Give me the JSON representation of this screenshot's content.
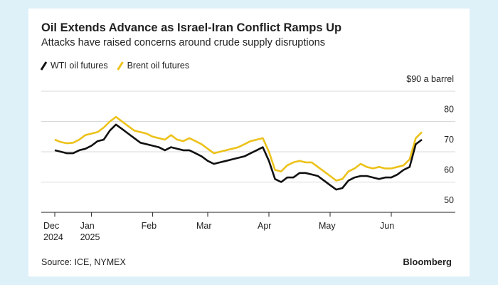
{
  "chart_data": {
    "type": "line",
    "title": "Oil Extends Advance as Israel-Iran Conflict Ramps Up",
    "subtitle": "Attacks have raised concerns around crude supply disruptions",
    "source": "Source: ICE, NYMEX",
    "brand": "Bloomberg",
    "legend": "top-left",
    "grid": true,
    "categories": [
      "Dec\n2024",
      null,
      null,
      null,
      null,
      null,
      "Jan\n2025",
      null,
      null,
      null,
      null,
      null,
      null,
      null,
      null,
      null,
      "Feb",
      null,
      null,
      null,
      null,
      null,
      null,
      null,
      null,
      "Mar",
      null,
      null,
      null,
      null,
      null,
      null,
      null,
      null,
      null,
      "Apr",
      null,
      null,
      null,
      null,
      null,
      null,
      null,
      null,
      null,
      "May",
      null,
      null,
      null,
      null,
      null,
      null,
      null,
      null,
      null,
      "Jun",
      null,
      null,
      null,
      null,
      null
    ],
    "ylim": [
      50,
      90
    ],
    "yticks": [
      50,
      60,
      70,
      80,
      {
        "value": 90,
        "label": "$90 a barrel"
      }
    ],
    "series": [
      {
        "name": "WTI oil futures",
        "color": "#111111",
        "values": [
          70.5,
          70,
          69.5,
          69.5,
          70.5,
          71,
          72,
          73.5,
          74,
          77,
          79,
          77.5,
          76,
          74.5,
          73,
          72.5,
          72,
          71.5,
          70.5,
          71.5,
          71,
          70.5,
          70.5,
          69.5,
          68.5,
          67,
          66,
          66.5,
          67,
          67.5,
          68,
          68.5,
          69.5,
          70.5,
          71.5,
          67,
          61,
          60,
          61.5,
          61.5,
          63,
          63,
          62.5,
          62,
          60.5,
          59,
          57.5,
          58,
          60.5,
          61.5,
          62,
          62,
          61.5,
          61,
          61.5,
          61.5,
          62.5,
          64,
          65,
          72.5,
          74
        ]
      },
      {
        "name": "Brent oil futures",
        "color": "#ecc21b",
        "values": [
          74,
          73.2,
          72.8,
          73,
          74,
          75.5,
          76,
          76.5,
          78,
          80,
          81.5,
          80,
          78.5,
          77,
          76.5,
          76,
          75,
          74.5,
          74,
          75.5,
          74,
          73.5,
          74.5,
          73.5,
          72.5,
          71,
          69.5,
          70,
          70.5,
          71,
          71.5,
          72.5,
          73.5,
          74,
          74.5,
          70,
          64,
          63.5,
          65.5,
          66.5,
          67,
          66.5,
          66.5,
          65,
          63.5,
          62,
          60.5,
          61,
          63.5,
          64.5,
          66,
          65,
          64.5,
          65,
          64.5,
          64.5,
          65,
          65.5,
          67.5,
          74.5,
          76.5
        ]
      }
    ]
  }
}
